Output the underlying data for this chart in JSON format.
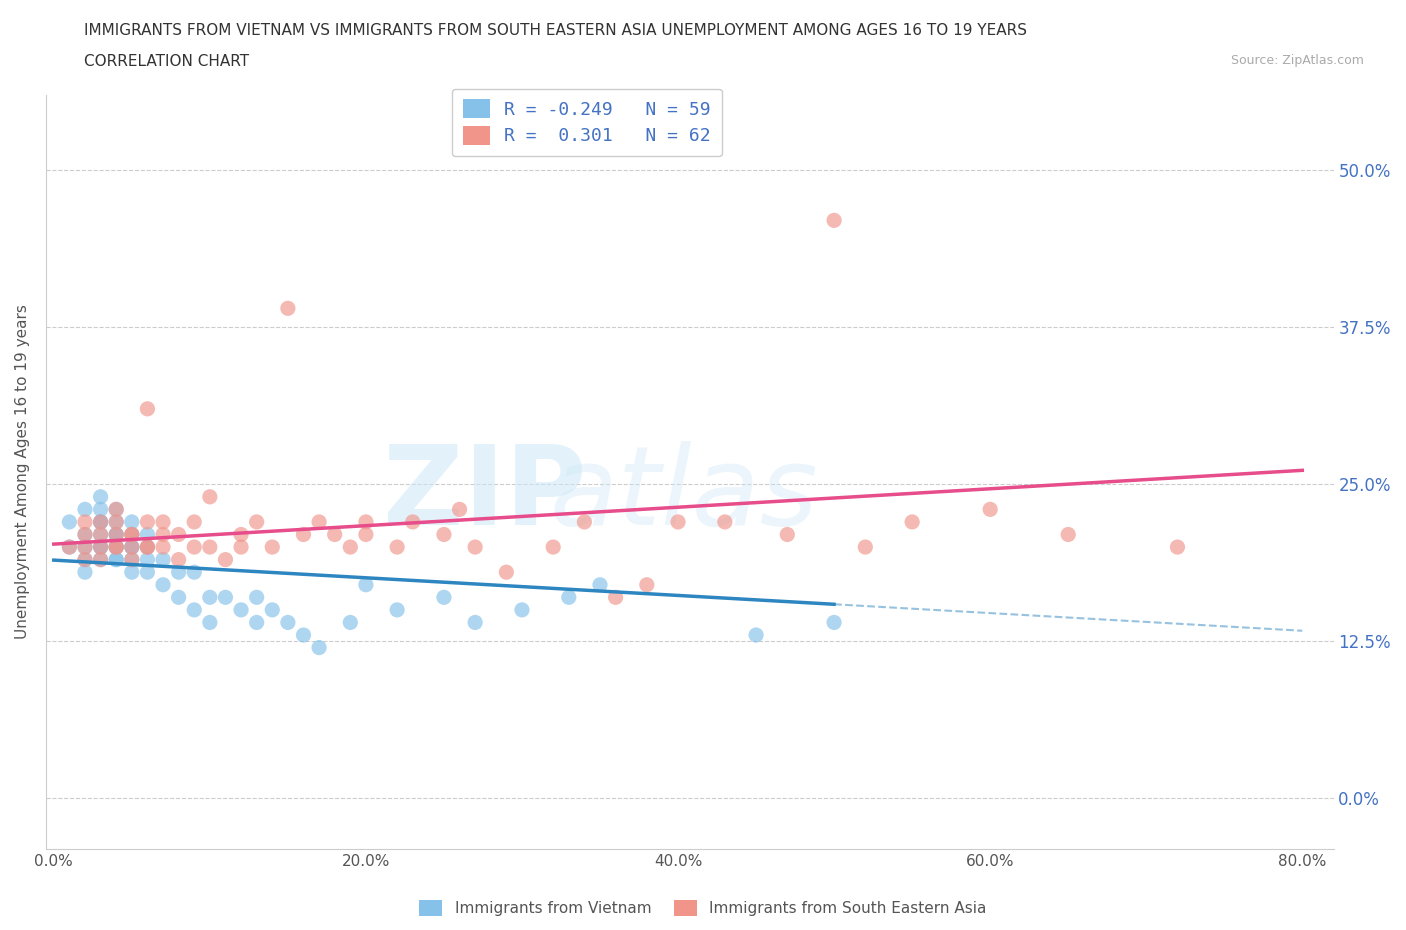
{
  "title_line1": "IMMIGRANTS FROM VIETNAM VS IMMIGRANTS FROM SOUTH EASTERN ASIA UNEMPLOYMENT AMONG AGES 16 TO 19 YEARS",
  "title_line2": "CORRELATION CHART",
  "source_text": "Source: ZipAtlas.com",
  "ylabel": "Unemployment Among Ages 16 to 19 years",
  "xlim": [
    -0.005,
    0.82
  ],
  "ylim": [
    -0.04,
    0.56
  ],
  "xticks": [
    0.0,
    0.2,
    0.4,
    0.6,
    0.8
  ],
  "xticklabels": [
    "0.0%",
    "20.0%",
    "40.0%",
    "60.0%",
    "80.0%"
  ],
  "yticks": [
    0.0,
    0.125,
    0.25,
    0.375,
    0.5
  ],
  "yticklabels": [
    "0.0%",
    "12.5%",
    "25.0%",
    "37.5%",
    "50.0%"
  ],
  "color_vietnam": "#85c1e9",
  "color_sea": "#f1948a",
  "trendline_vietnam_color": "#2e86c1",
  "trendline_sea_color": "#e74c8b",
  "R_vietnam": -0.249,
  "N_vietnam": 59,
  "R_sea": 0.301,
  "N_sea": 62,
  "legend_label_vietnam": "Immigrants from Vietnam",
  "legend_label_sea": "Immigrants from South Eastern Asia",
  "watermark_zip": "ZIP",
  "watermark_atlas": "atlas",
  "background_color": "#ffffff",
  "grid_color": "#cccccc",
  "vietnam_x": [
    0.01,
    0.01,
    0.02,
    0.02,
    0.02,
    0.02,
    0.02,
    0.03,
    0.03,
    0.03,
    0.03,
    0.03,
    0.03,
    0.03,
    0.03,
    0.04,
    0.04,
    0.04,
    0.04,
    0.04,
    0.04,
    0.04,
    0.04,
    0.05,
    0.05,
    0.05,
    0.05,
    0.05,
    0.05,
    0.06,
    0.06,
    0.06,
    0.06,
    0.07,
    0.07,
    0.08,
    0.08,
    0.09,
    0.09,
    0.1,
    0.1,
    0.11,
    0.12,
    0.13,
    0.13,
    0.14,
    0.15,
    0.16,
    0.17,
    0.19,
    0.2,
    0.22,
    0.25,
    0.27,
    0.3,
    0.33,
    0.35,
    0.45,
    0.5
  ],
  "vietnam_y": [
    0.2,
    0.22,
    0.21,
    0.19,
    0.23,
    0.18,
    0.2,
    0.24,
    0.22,
    0.21,
    0.2,
    0.22,
    0.2,
    0.19,
    0.23,
    0.21,
    0.19,
    0.22,
    0.2,
    0.23,
    0.2,
    0.21,
    0.19,
    0.2,
    0.18,
    0.22,
    0.19,
    0.2,
    0.21,
    0.18,
    0.2,
    0.19,
    0.21,
    0.17,
    0.19,
    0.18,
    0.16,
    0.15,
    0.18,
    0.16,
    0.14,
    0.16,
    0.15,
    0.16,
    0.14,
    0.15,
    0.14,
    0.13,
    0.12,
    0.14,
    0.17,
    0.15,
    0.16,
    0.14,
    0.15,
    0.16,
    0.17,
    0.13,
    0.14
  ],
  "sea_x": [
    0.01,
    0.02,
    0.02,
    0.02,
    0.02,
    0.03,
    0.03,
    0.03,
    0.03,
    0.04,
    0.04,
    0.04,
    0.04,
    0.04,
    0.05,
    0.05,
    0.05,
    0.05,
    0.06,
    0.06,
    0.06,
    0.06,
    0.07,
    0.07,
    0.07,
    0.08,
    0.08,
    0.09,
    0.09,
    0.1,
    0.1,
    0.11,
    0.12,
    0.12,
    0.13,
    0.14,
    0.15,
    0.16,
    0.17,
    0.18,
    0.19,
    0.2,
    0.2,
    0.22,
    0.23,
    0.25,
    0.26,
    0.27,
    0.29,
    0.32,
    0.34,
    0.36,
    0.38,
    0.4,
    0.43,
    0.47,
    0.5,
    0.52,
    0.55,
    0.6,
    0.65,
    0.72
  ],
  "sea_y": [
    0.2,
    0.19,
    0.22,
    0.2,
    0.21,
    0.2,
    0.22,
    0.19,
    0.21,
    0.2,
    0.22,
    0.21,
    0.23,
    0.2,
    0.21,
    0.19,
    0.21,
    0.2,
    0.22,
    0.2,
    0.31,
    0.2,
    0.21,
    0.2,
    0.22,
    0.19,
    0.21,
    0.2,
    0.22,
    0.2,
    0.24,
    0.19,
    0.21,
    0.2,
    0.22,
    0.2,
    0.39,
    0.21,
    0.22,
    0.21,
    0.2,
    0.22,
    0.21,
    0.2,
    0.22,
    0.21,
    0.23,
    0.2,
    0.18,
    0.2,
    0.22,
    0.16,
    0.17,
    0.22,
    0.22,
    0.21,
    0.46,
    0.2,
    0.22,
    0.23,
    0.21,
    0.2
  ]
}
